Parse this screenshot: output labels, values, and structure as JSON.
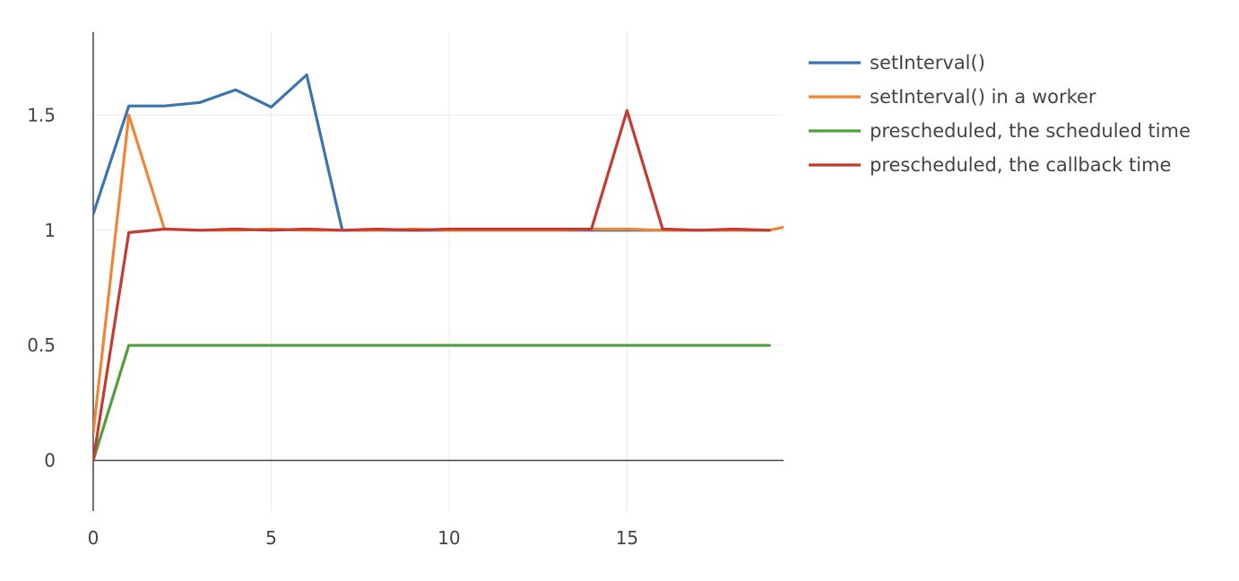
{
  "chart_data": {
    "type": "line",
    "title": "",
    "xlabel": "",
    "ylabel": "",
    "xlim": [
      0,
      19.4
    ],
    "ylim": [
      -0.22,
      1.86
    ],
    "x_ticks": [
      {
        "value": 0,
        "label": "0"
      },
      {
        "value": 5,
        "label": "5"
      },
      {
        "value": 10,
        "label": "10"
      },
      {
        "value": 15,
        "label": "15"
      }
    ],
    "y_ticks": [
      {
        "value": 0,
        "label": "0"
      },
      {
        "value": 0.5,
        "label": "0.5"
      },
      {
        "value": 1,
        "label": "1"
      },
      {
        "value": 1.5,
        "label": "1.5"
      }
    ],
    "grid": true,
    "legend": "right",
    "series": [
      {
        "name": "setInterval()",
        "color": "#3b75af",
        "x": [
          0,
          1,
          2,
          3,
          4,
          5,
          6,
          7,
          8,
          9,
          10,
          11,
          12,
          13,
          14,
          15,
          16,
          17,
          18,
          19
        ],
        "y": [
          1.07,
          1.54,
          1.54,
          1.555,
          1.61,
          1.535,
          1.675,
          1.0,
          1.0,
          1.0,
          1.0,
          1.0,
          1.0,
          1.0,
          1.0,
          1.0,
          1.0,
          1.0,
          1.0,
          1.0
        ]
      },
      {
        "name": "setInterval() in a worker",
        "color": "#ef8636",
        "x": [
          0,
          1,
          2,
          3,
          4,
          5,
          6,
          7,
          8,
          9,
          10,
          11,
          12,
          13,
          14,
          15,
          16,
          17,
          18,
          19,
          19.6
        ],
        "y": [
          0.12,
          1.5,
          1.005,
          1.0,
          1.0,
          1.005,
          1.0,
          1.0,
          1.0,
          1.005,
          1.0,
          1.0,
          1.0,
          1.0,
          1.005,
          1.005,
          1.0,
          1.0,
          1.0,
          1.0,
          1.02
        ]
      },
      {
        "name": "prescheduled, the scheduled time",
        "color": "#519e3e",
        "x": [
          0,
          1,
          2,
          3,
          4,
          5,
          6,
          7,
          8,
          9,
          10,
          11,
          12,
          13,
          14,
          15,
          16,
          17,
          18,
          19
        ],
        "y": [
          0.0,
          0.5,
          0.5,
          0.5,
          0.5,
          0.5,
          0.5,
          0.5,
          0.5,
          0.5,
          0.5,
          0.5,
          0.5,
          0.5,
          0.5,
          0.5,
          0.5,
          0.5,
          0.5,
          0.5
        ]
      },
      {
        "name": "prescheduled, the callback time",
        "color": "#c53a32",
        "x": [
          0,
          1,
          2,
          3,
          4,
          5,
          6,
          7,
          8,
          9,
          10,
          11,
          12,
          13,
          14,
          15,
          16,
          17,
          18,
          19
        ],
        "y": [
          0.0,
          0.99,
          1.005,
          1.0,
          1.005,
          1.0,
          1.005,
          1.0,
          1.005,
          1.0,
          1.005,
          1.005,
          1.005,
          1.005,
          1.005,
          1.52,
          1.005,
          1.0,
          1.005,
          1.0
        ]
      }
    ]
  }
}
